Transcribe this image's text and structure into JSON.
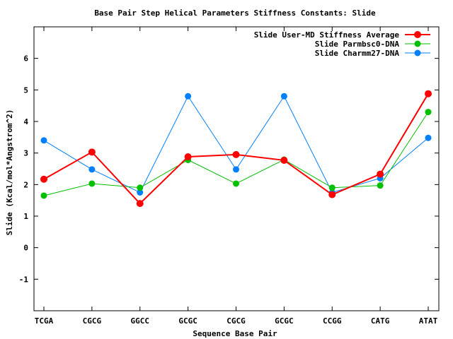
{
  "chart_data": {
    "type": "line",
    "title": "Base Pair Step Helical Parameters Stiffness Constants: Slide",
    "xlabel": "Sequence Base Pair",
    "ylabel": "Slide (Kcal/mol*Angstrom^2)",
    "categories": [
      "TCGA",
      "CGCG",
      "GGCC",
      "GCGC",
      "CGCG",
      "GCGC",
      "CCGG",
      "CATG",
      "ATAT"
    ],
    "ylim": [
      -2,
      7
    ],
    "yticks": [
      -1,
      0,
      1,
      2,
      3,
      4,
      5,
      6
    ],
    "ytick_labels": [
      "-1",
      "0",
      "1",
      "2",
      "3",
      "4",
      "5",
      "6"
    ],
    "grid": false,
    "legend_position": "top-right",
    "series": [
      {
        "name": "Slide User-MD Stiffness Average",
        "color": "#ff0000",
        "values": [
          2.17,
          3.03,
          1.4,
          2.88,
          2.95,
          2.77,
          1.68,
          2.33,
          4.88
        ]
      },
      {
        "name": "Slide Parmbsc0-DNA",
        "color": "#00c000",
        "values": [
          1.65,
          2.03,
          1.9,
          2.78,
          2.03,
          2.79,
          1.9,
          1.97,
          4.3
        ]
      },
      {
        "name": "Slide Charmm27-DNA",
        "color": "#0080ff",
        "values": [
          3.4,
          2.48,
          1.75,
          4.8,
          2.48,
          4.8,
          1.75,
          2.2,
          3.48
        ]
      }
    ]
  }
}
